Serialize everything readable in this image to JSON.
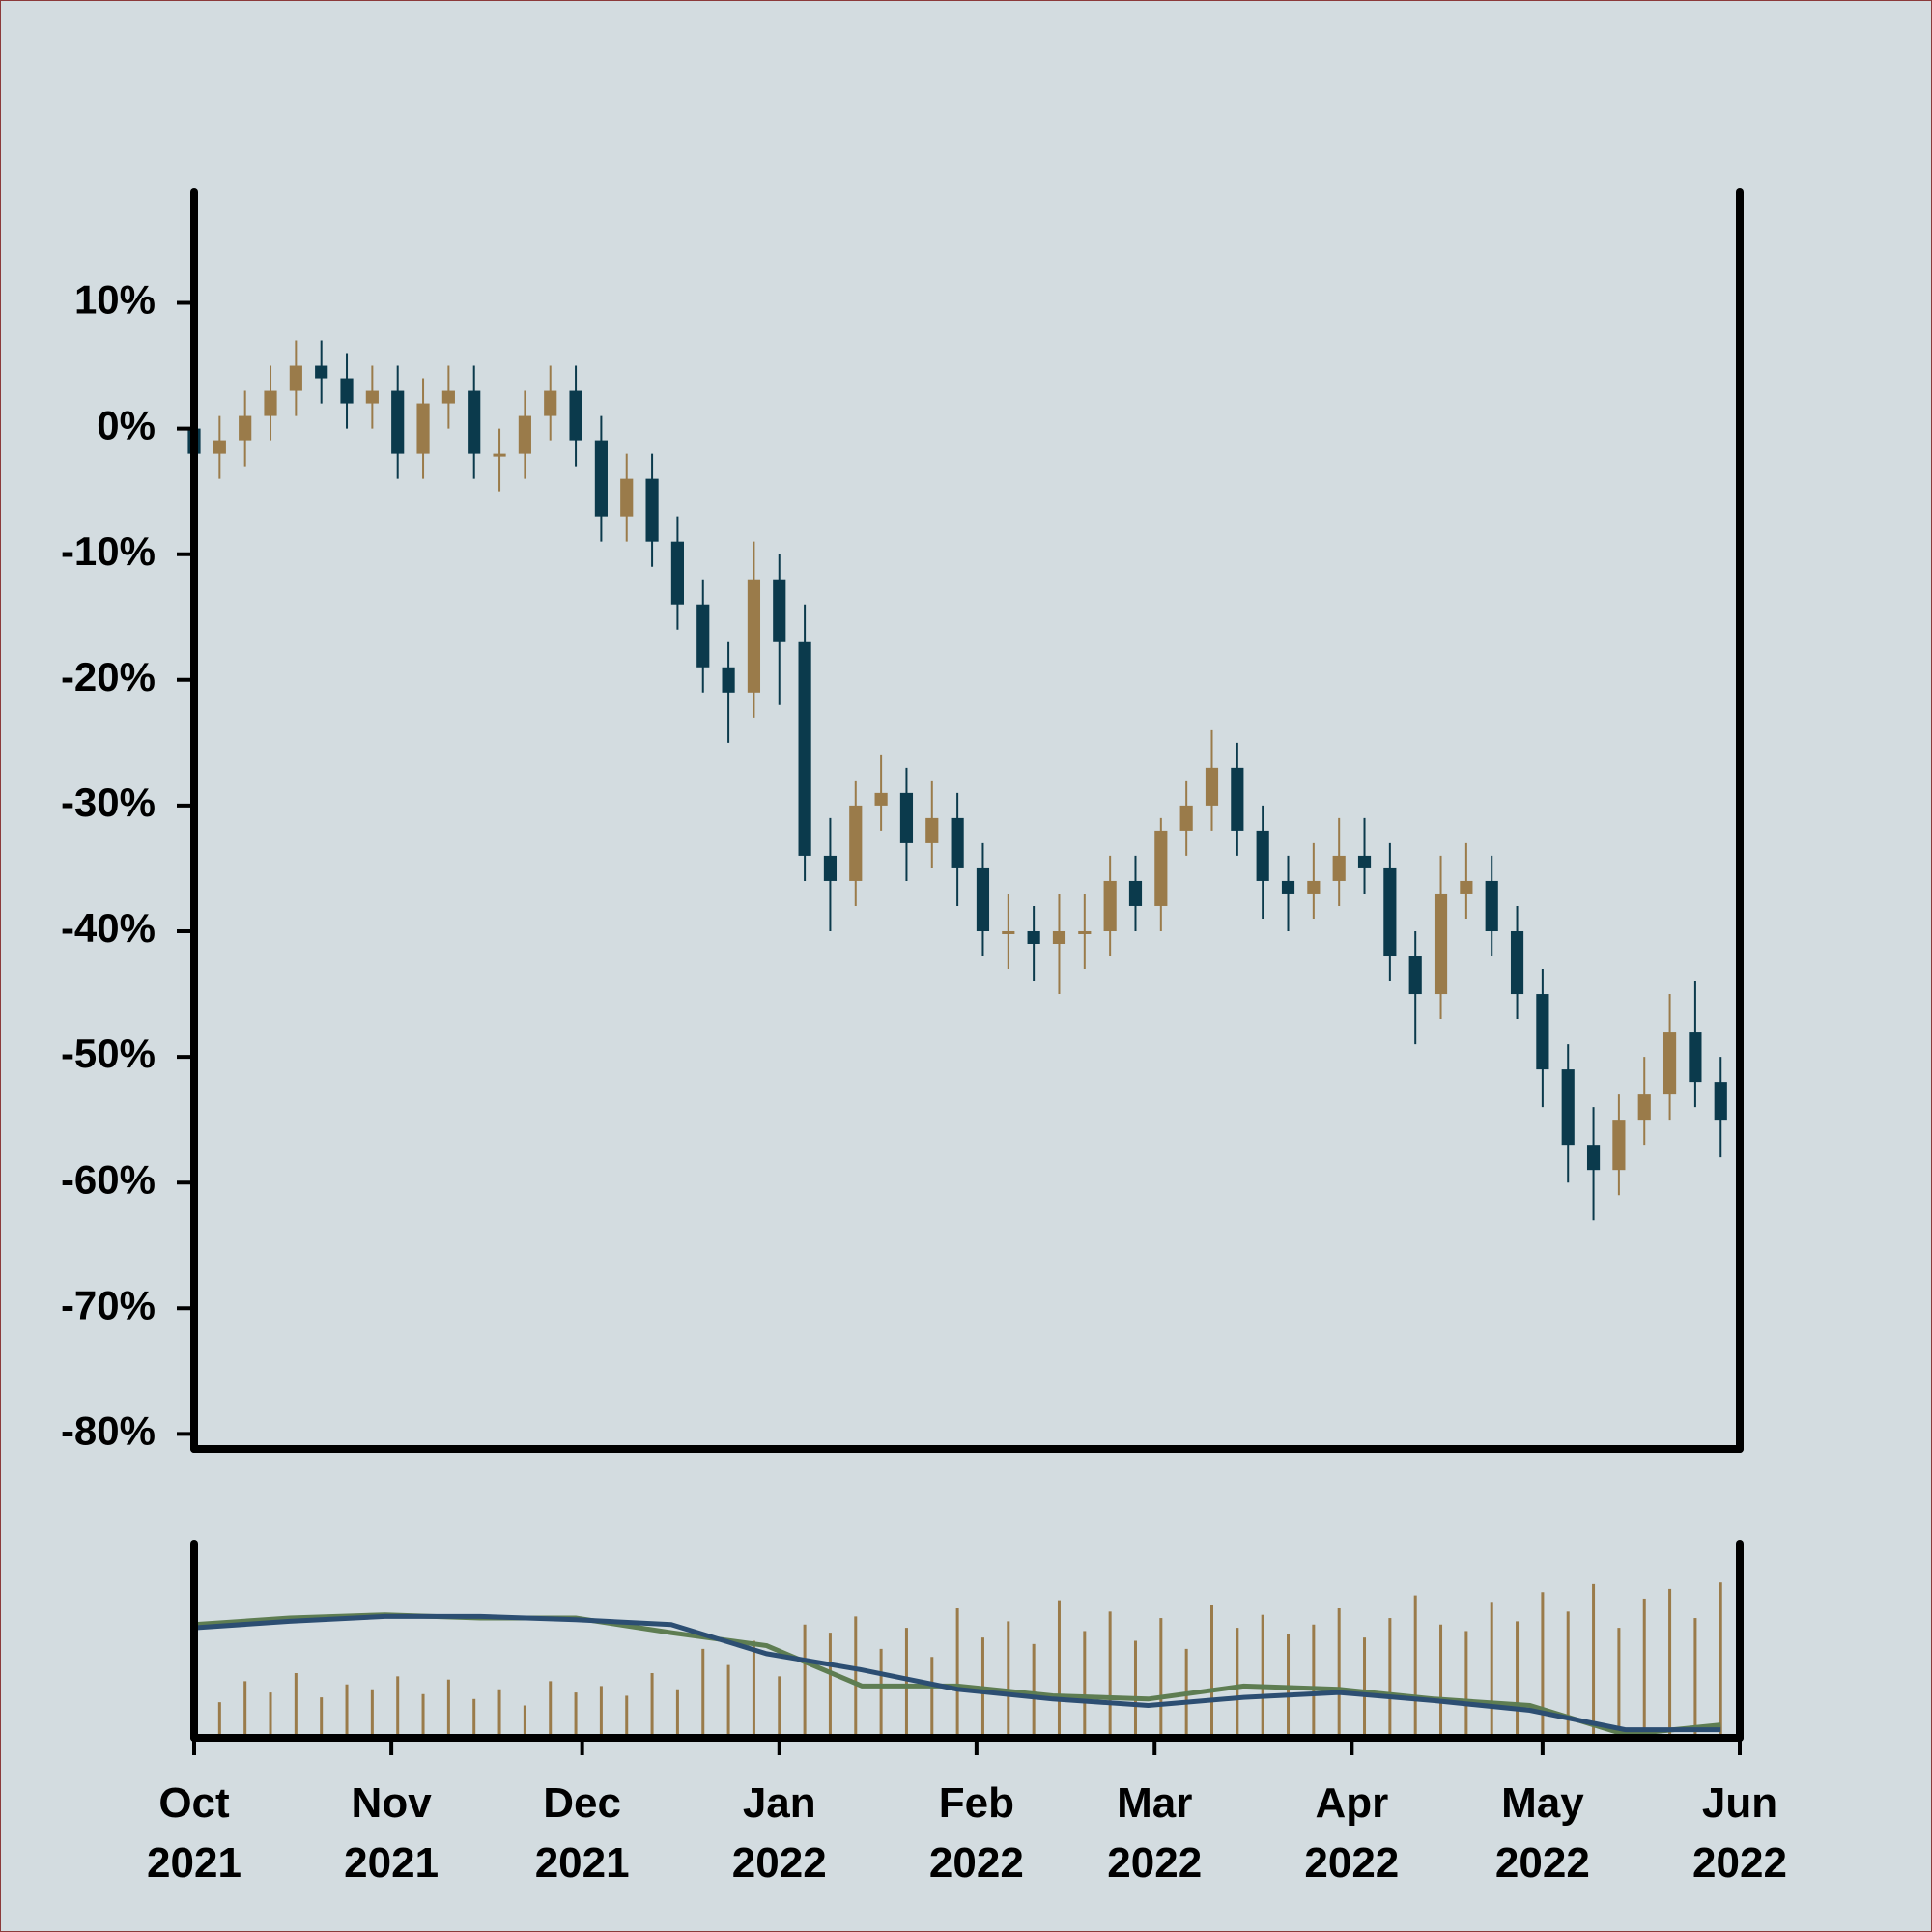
{
  "chart_data": {
    "type": "candlestick",
    "x": [
      0,
      4,
      8,
      12,
      16,
      20,
      24,
      28,
      32,
      36,
      40,
      44,
      48,
      52,
      56,
      60,
      64,
      68,
      72,
      76,
      80,
      84,
      88,
      92,
      96,
      100,
      104,
      108,
      112,
      116,
      120,
      124,
      128,
      132,
      136,
      140,
      144,
      148,
      152,
      156,
      160,
      164,
      168,
      172,
      176,
      180,
      184,
      188,
      192,
      196,
      200,
      204,
      208,
      212,
      216,
      220,
      224,
      228,
      232,
      236,
      240
    ],
    "open": [
      0,
      -2,
      -1,
      1,
      3,
      5,
      4,
      2,
      3,
      -2,
      2,
      3,
      -2,
      -2,
      1,
      3,
      -1,
      -7,
      -4,
      -9,
      -14,
      -19,
      -21,
      -12,
      -17,
      -34,
      -36,
      -30,
      -29,
      -33,
      -31,
      -35,
      -40,
      -40,
      -41,
      -40,
      -40,
      -36,
      -38,
      -32,
      -30,
      -27,
      -32,
      -36,
      -37,
      -36,
      -34,
      -35,
      -42,
      -45,
      -37,
      -36,
      -40,
      -45,
      -51,
      -57,
      -59,
      -55,
      -53,
      -48,
      -52
    ],
    "high": [
      2,
      1,
      3,
      5,
      7,
      7,
      6,
      5,
      5,
      4,
      5,
      5,
      0,
      3,
      5,
      5,
      1,
      -2,
      -2,
      -7,
      -12,
      -17,
      -9,
      -10,
      -14,
      -31,
      -28,
      -26,
      -27,
      -28,
      -29,
      -33,
      -37,
      -38,
      -37,
      -37,
      -34,
      -34,
      -31,
      -28,
      -24,
      -25,
      -30,
      -34,
      -33,
      -31,
      -31,
      -33,
      -40,
      -34,
      -33,
      -34,
      -38,
      -43,
      -49,
      -54,
      -53,
      -50,
      -45,
      -44,
      -50
    ],
    "low": [
      -4,
      -4,
      -3,
      -1,
      1,
      2,
      0,
      0,
      -4,
      -4,
      0,
      -4,
      -5,
      -4,
      -1,
      -3,
      -9,
      -9,
      -11,
      -16,
      -21,
      -25,
      -23,
      -22,
      -36,
      -40,
      -38,
      -32,
      -36,
      -35,
      -38,
      -42,
      -43,
      -44,
      -45,
      -43,
      -42,
      -40,
      -40,
      -34,
      -32,
      -34,
      -39,
      -40,
      -39,
      -38,
      -37,
      -44,
      -49,
      -47,
      -39,
      -42,
      -47,
      -54,
      -60,
      -63,
      -61,
      -57,
      -55,
      -54,
      -58
    ],
    "close": [
      -2,
      -1,
      1,
      3,
      5,
      4,
      2,
      3,
      -2,
      2,
      3,
      -2,
      -2,
      1,
      3,
      -1,
      -7,
      -4,
      -9,
      -14,
      -19,
      -21,
      -12,
      -17,
      -34,
      -36,
      -30,
      -29,
      -33,
      -31,
      -35,
      -40,
      -40,
      -41,
      -40,
      -40,
      -36,
      -38,
      -32,
      -30,
      -27,
      -32,
      -36,
      -37,
      -36,
      -34,
      -35,
      -42,
      -45,
      -37,
      -36,
      -40,
      -45,
      -51,
      -57,
      -59,
      -55,
      -53,
      -48,
      -52,
      -55
    ],
    "volume": [
      30,
      22,
      35,
      28,
      40,
      25,
      33,
      30,
      38,
      27,
      36,
      24,
      30,
      20,
      35,
      28,
      32,
      26,
      40,
      30,
      55,
      45,
      60,
      38,
      70,
      65,
      75,
      55,
      68,
      50,
      80,
      62,
      72,
      58,
      85,
      66,
      78,
      60,
      74,
      55,
      82,
      68,
      76,
      64,
      70,
      80,
      62,
      74,
      88,
      70,
      66,
      84,
      72,
      90,
      78,
      95,
      68,
      86,
      92,
      74,
      96
    ],
    "up_color": "#9a7b4a",
    "down_color": "#0b3a4c",
    "volume_color": "#9a7b4a",
    "moving_averages": [
      {
        "color": "#5e7d52",
        "x": [
          0,
          15,
          30,
          45,
          60,
          75,
          90,
          105,
          120,
          135,
          150,
          165,
          180,
          195,
          210,
          225,
          240
        ],
        "values": [
          70,
          74,
          76,
          74,
          74,
          65,
          57,
          32,
          32,
          26,
          24,
          32,
          30,
          24,
          20,
          2,
          8
        ]
      },
      {
        "color": "#2c4e72",
        "x": [
          0,
          15,
          30,
          45,
          60,
          75,
          90,
          105,
          120,
          135,
          150,
          165,
          180,
          195,
          210,
          225,
          240
        ],
        "values": [
          68,
          72,
          75,
          75,
          73,
          70,
          52,
          42,
          30,
          24,
          20,
          25,
          28,
          23,
          17,
          5,
          5
        ]
      }
    ],
    "xlim": [
      0,
      243
    ],
    "xticks": [
      {
        "value": 0,
        "label": "Oct\n2021"
      },
      {
        "value": 31,
        "label": "Nov\n2021"
      },
      {
        "value": 61,
        "label": "Dec\n2021"
      },
      {
        "value": 92,
        "label": "Jan\n2022"
      },
      {
        "value": 123,
        "label": "Feb\n2022"
      },
      {
        "value": 151,
        "label": "Mar\n2022"
      },
      {
        "value": 182,
        "label": "Apr\n2022"
      },
      {
        "value": 212,
        "label": "May\n2022"
      },
      {
        "value": 243,
        "label": "Jun\n2022"
      }
    ],
    "ylim": [
      -81.2,
      18.8
    ],
    "yticks": [
      {
        "value": 10,
        "label": "10%"
      },
      {
        "value": 0,
        "label": "0%"
      },
      {
        "value": -10,
        "label": "-10%"
      },
      {
        "value": -20,
        "label": "-20%"
      },
      {
        "value": -30,
        "label": "-30%"
      },
      {
        "value": -40,
        "label": "-40%"
      },
      {
        "value": -50,
        "label": "-50%"
      },
      {
        "value": -60,
        "label": "-60%"
      },
      {
        "value": -70,
        "label": "-70%"
      },
      {
        "value": -80,
        "label": "-80%"
      }
    ],
    "volume_ylim": [
      0,
      120
    ]
  }
}
